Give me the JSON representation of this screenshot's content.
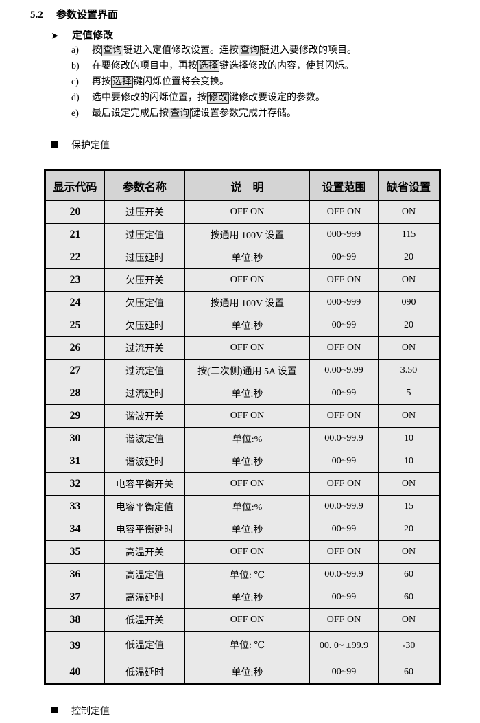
{
  "section": {
    "number": "5.2",
    "title": "参数设置界面"
  },
  "subsection": {
    "bullet_icon": "arrowhead-icon",
    "title": "定值修改"
  },
  "steps": [
    {
      "label": "a)",
      "parts": [
        {
          "t": "按"
        },
        {
          "k": "查询"
        },
        {
          "t": "键进入定值修改设置。连按"
        },
        {
          "k": "查询"
        },
        {
          "t": "键进入要修改的项目。"
        }
      ]
    },
    {
      "label": "b)",
      "parts": [
        {
          "t": "在要修改的项目中，再按"
        },
        {
          "k": "选择"
        },
        {
          "t": "键选择修改的内容，使其闪烁。"
        }
      ]
    },
    {
      "label": "c)",
      "parts": [
        {
          "t": "再按"
        },
        {
          "k": "选择"
        },
        {
          "t": "键闪烁位置将会变换。"
        }
      ]
    },
    {
      "label": "d)",
      "parts": [
        {
          "t": "选中要修改的闪烁位置，按"
        },
        {
          "k": "修改"
        },
        {
          "t": "键修改要设定的参数。"
        }
      ]
    },
    {
      "label": "e)",
      "parts": [
        {
          "t": "最后设定完成后按"
        },
        {
          "k": "查询"
        },
        {
          "t": "键设置参数完成并存储。"
        }
      ]
    }
  ],
  "protect_heading": "保护定值",
  "control_heading": "控制定值",
  "table": {
    "headers": [
      "显示代码",
      "参数名称",
      "说　明",
      "设置范围",
      "缺省设置"
    ],
    "rows": [
      [
        "20",
        "过压开关",
        "OFF ON",
        "OFF ON",
        "ON"
      ],
      [
        "21",
        "过压定值",
        "按通用 100V 设置",
        "000~999",
        "115"
      ],
      [
        "22",
        "过压延时",
        "单位:秒",
        "00~99",
        "20"
      ],
      [
        "23",
        "欠压开关",
        "OFF ON",
        "OFF ON",
        "ON"
      ],
      [
        "24",
        "欠压定值",
        "按通用 100V 设置",
        "000~999",
        "090"
      ],
      [
        "25",
        "欠压延时",
        "单位:秒",
        "00~99",
        "20"
      ],
      [
        "26",
        "过流开关",
        "OFF ON",
        "OFF ON",
        "ON"
      ],
      [
        "27",
        "过流定值",
        "按(二次侧)通用 5A 设置",
        "0.00~9.99",
        "3.50"
      ],
      [
        "28",
        "过流延时",
        "单位:秒",
        "00~99",
        "5"
      ],
      [
        "29",
        "谐波开关",
        "OFF ON",
        "OFF ON",
        "ON"
      ],
      [
        "30",
        "谐波定值",
        "单位:%",
        "00.0~99.9",
        "10"
      ],
      [
        "31",
        "谐波延时",
        "单位:秒",
        "00~99",
        "10"
      ],
      [
        "32",
        "电容平衡开关",
        "OFF ON",
        "OFF ON",
        "ON"
      ],
      [
        "33",
        "电容平衡定值",
        "单位:%",
        "00.0~99.9",
        "15"
      ],
      [
        "34",
        "电容平衡延时",
        "单位:秒",
        "00~99",
        "20"
      ],
      [
        "35",
        "高温开关",
        "OFF ON",
        "OFF ON",
        "ON"
      ],
      [
        "36",
        "高温定值",
        "单位: ℃",
        "00.0~99.9",
        "60"
      ],
      [
        "37",
        "高温延时",
        "单位:秒",
        "00~99",
        "60"
      ],
      [
        "38",
        "低温开关",
        "OFF ON",
        "OFF ON",
        "ON"
      ],
      [
        "39",
        "低温定值",
        "单位: ℃",
        "00. 0~ ±99.9",
        "-30"
      ],
      [
        "40",
        "低温延时",
        "单位:秒",
        "00~99",
        "60"
      ]
    ]
  }
}
